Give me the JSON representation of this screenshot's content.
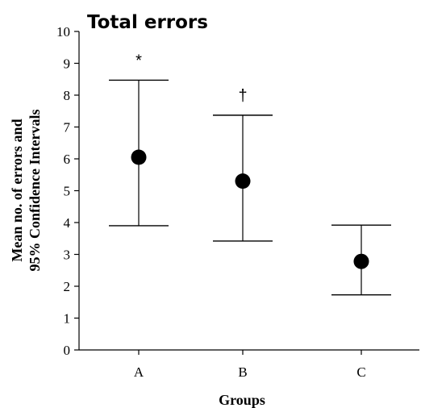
{
  "chart_data": {
    "type": "scatter",
    "title": "Total errors",
    "xlabel": "Groups",
    "ylabel": [
      "Mean no. of errors and",
      "95% Confidence Intervals"
    ],
    "categories": [
      "A",
      "B",
      "C"
    ],
    "ylim": [
      0,
      10
    ],
    "yticks": [
      0,
      1,
      2,
      3,
      4,
      5,
      6,
      7,
      8,
      9,
      10
    ],
    "grid": false,
    "series": [
      {
        "values": [
          6.05,
          5.3,
          2.78
        ],
        "ci_low": [
          3.9,
          3.42,
          1.73
        ],
        "ci_high": [
          8.47,
          7.37,
          3.92
        ]
      }
    ],
    "annotations": [
      "*",
      "†",
      ""
    ],
    "colors": {
      "marker": "#000000",
      "axis": "#000000"
    }
  }
}
